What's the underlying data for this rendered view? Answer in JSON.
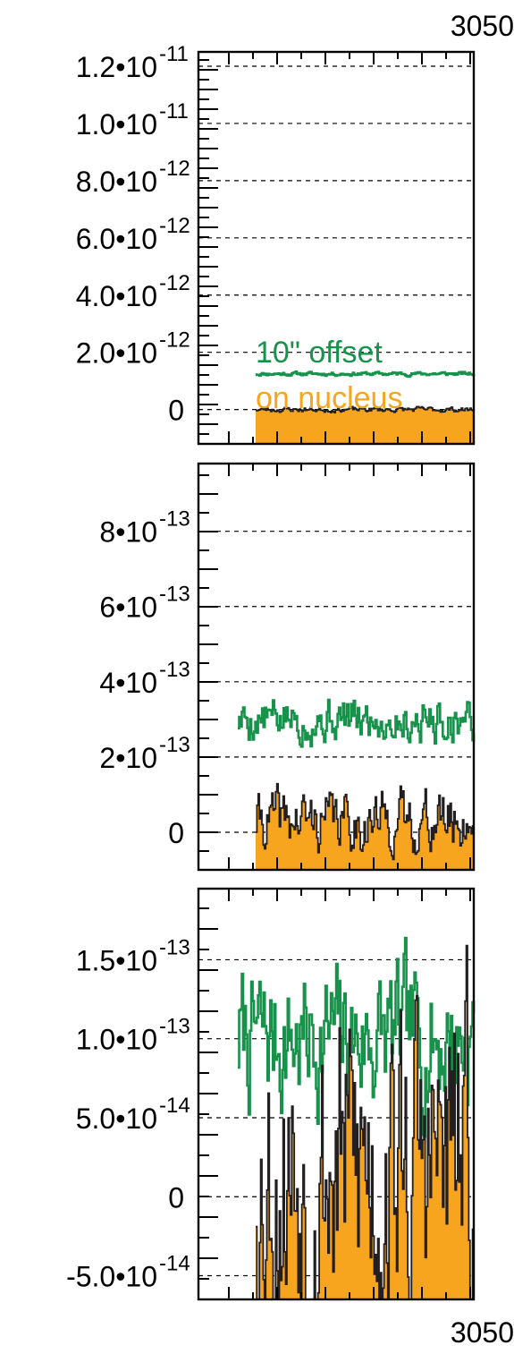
{
  "chart_data": [
    {
      "type": "area",
      "panel": "top",
      "ylim": [
        -1.2e-12,
        1.25e-11
      ],
      "grid": true,
      "top_tick_label": "3050",
      "y_ticks": [
        {
          "value": 1.2e-11,
          "mant": "1.2•10",
          "exp": "-11"
        },
        {
          "value": 1e-11,
          "mant": "1.0•10",
          "exp": "-11"
        },
        {
          "value": 8e-12,
          "mant": "8.0•10",
          "exp": "-12"
        },
        {
          "value": 6e-12,
          "mant": "6.0•10",
          "exp": "-12"
        },
        {
          "value": 4e-12,
          "mant": "4.0•10",
          "exp": "-12"
        },
        {
          "value": 2e-12,
          "mant": "2.0•10",
          "exp": "-12"
        },
        {
          "value": 0,
          "mant": "0",
          "exp": ""
        }
      ],
      "legend": [
        {
          "label": "10\" offset",
          "color": "#16924a"
        },
        {
          "label": "on nucleus",
          "color": "#f7a51e"
        }
      ],
      "series": [
        {
          "name": "10\" offset",
          "style": "step-line",
          "color": "#16924a",
          "base": 1.25e-12,
          "noise": 5e-14,
          "seed": 11
        },
        {
          "name": "on nucleus",
          "style": "filled-step",
          "color": "#f7a51e",
          "base": 0.0,
          "noise": 7e-14,
          "seed": 23
        }
      ]
    },
    {
      "type": "area",
      "panel": "middle",
      "ylim": [
        -1e-13,
        9.8e-13
      ],
      "grid": true,
      "y_ticks": [
        {
          "value": 8e-13,
          "mant": "8•10",
          "exp": "-13"
        },
        {
          "value": 6e-13,
          "mant": "6•10",
          "exp": "-13"
        },
        {
          "value": 4e-13,
          "mant": "4•10",
          "exp": "-13"
        },
        {
          "value": 2e-13,
          "mant": "2•10",
          "exp": "-13"
        },
        {
          "value": 0,
          "mant": "0",
          "exp": ""
        }
      ],
      "series": [
        {
          "name": "10\" offset",
          "style": "step-line",
          "color": "#16924a",
          "base": 3e-13,
          "noise": 4.5e-14,
          "seed": 5
        },
        {
          "name": "on nucleus",
          "style": "filled-step",
          "color": "#f7a51e",
          "base": 3e-14,
          "noise": 6e-14,
          "seed": 41
        }
      ]
    },
    {
      "type": "area",
      "panel": "bottom",
      "ylim": [
        -6.5e-14,
        1.95e-13
      ],
      "grid": true,
      "bottom_tick_label": "3050",
      "y_ticks": [
        {
          "value": 1.5e-13,
          "mant": "1.5•10",
          "exp": "-13"
        },
        {
          "value": 1e-13,
          "mant": "1.0•10",
          "exp": "-13"
        },
        {
          "value": 5e-14,
          "mant": "5.0•10",
          "exp": "-14"
        },
        {
          "value": 0,
          "mant": "0",
          "exp": ""
        },
        {
          "value": -5e-14,
          "mant": "-5.0•10",
          "exp": "-14"
        }
      ],
      "series": [
        {
          "name": "10\" offset",
          "style": "step-line",
          "color": "#16924a",
          "base": 1e-13,
          "noise": 3.5e-14,
          "seed": 7
        },
        {
          "name": "on nucleus",
          "style": "filled-step",
          "color": "#f7a51e",
          "base": 2e-14,
          "noise": 8e-14,
          "seed": 53
        }
      ]
    }
  ]
}
